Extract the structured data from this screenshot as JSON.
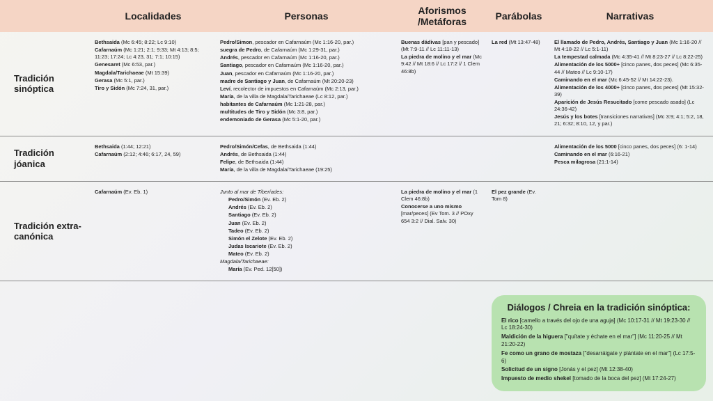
{
  "headers": {
    "loc": "Localidades",
    "per": "Personas",
    "afo": "Aforismos /Metáforas",
    "par": "Parábolas",
    "nar": "Narrativas"
  },
  "rows": [
    {
      "label": "Tradición sinóptica",
      "loc": [
        {
          "b": "Bethsaida",
          "r": " (Mc 6:45; 8:22; Lc 9:10)"
        },
        {
          "b": "Cafarnaúm",
          "r": " (Mc 1:21; 2:1; 9:33; Mt 4:13; 8:5; 11:23; 17:24; Lc 4:23, 31; 7:1; 10:15)"
        },
        {
          "b": "Genesaret",
          "r": " (Mc 6:53, par.)"
        },
        {
          "b": "Magdala/Tarichaeae",
          "r": " (Mt 15:39)"
        },
        {
          "b": "Gerasa",
          "r": " (Mc 5:1, par.)"
        },
        {
          "b": "Tiro y Sidón",
          "r": " (Mc 7:24, 31, par.)"
        }
      ],
      "per": [
        {
          "b": "Pedro/Simon",
          "r": ", pescador en Cafarnaúm (Mc 1:16-20, par.)"
        },
        {
          "b": "suegra de Pedro",
          "r": ", de Cafarnaúm (Mc 1:29-31, par.)"
        },
        {
          "b": "Andrés",
          "r": ", pescador en Cafarnaúm (Mc 1:16-20, par.)"
        },
        {
          "b": "Santiago",
          "r": ", pescador en Cafarnaúm (Mc 1:16-20, par.)"
        },
        {
          "b": "Juan",
          "r": ", pescador en Cafarnaúm (Mc 1:16-20, par.)"
        },
        {
          "b": "madre de Santiago y Juan",
          "r": ", de Cafarnaúm (Mt 20:20-23)"
        },
        {
          "b": "Leví",
          "r": ", recolector de impuestos en Cafarnaúm (Mc 2:13, par.)"
        },
        {
          "b": "María",
          "r": ", de la villa de Magdala/Tarichaeae (Lc 8:12, par.)"
        },
        {
          "b": "habitantes de Cafarnaúm",
          "r": " (Mc 1:21-28, par.)"
        },
        {
          "b": "multitudes de Tiro y Sidón",
          "r": " (Mc 3:8, par.)"
        },
        {
          "b": "endemoniado de Gerasa",
          "r": " (Mc 5:1-20, par.)"
        }
      ],
      "afo": [
        {
          "b": "Buenas dádivas",
          "r": " [pan y pescado] (Mt 7:9-11 // Lc 11:11-13)"
        },
        {
          "b": "La piedra de molino y el mar",
          "r": " (Mc 9:42 // Mt 18:6 // Lc 17:2 // 1 Clem 46:8b)"
        }
      ],
      "par": [
        {
          "b": "La red",
          "r": " (Mt 13:47-48)"
        }
      ],
      "nar": [
        {
          "b": "El llamado de Pedro, Andrés, Santiago y Juan",
          "r": " (Mc 1:16-20 // Mt 4:18-22 // Lc 5:1-11)"
        },
        {
          "b": "La tempestad calmada",
          "r": " (Mc 4:35-41 // Mt 8:23-27 // Lc 8:22-25)"
        },
        {
          "b": "Alimentación de los 5000+",
          "r": " [cinco panes, dos peces] (Mc 6:35-44 // Mateo // Lc 9:10-17)"
        },
        {
          "b": "Caminando en el mar",
          "r": " (Mc 6:45-52 // Mt 14:22-23)."
        },
        {
          "b": "Alimentación de los 4000+",
          "r": " [cinco panes, dos peces] (Mt 15:32-39)"
        },
        {
          "b": "Aparición de Jesús Resucitado",
          "r": " [come pescado asado] (Lc 24:36-42)"
        },
        {
          "b": "Jesús y los botes",
          "r": " [transiciones narrativas] (Mc 3:9; 4:1; 5:2, 18, 21; 6:32; 8:10, 12, y par.)"
        }
      ]
    },
    {
      "label": "Tradición jóanica",
      "loc": [
        {
          "b": "Bethsaida",
          "r": " (1:44; 12:21)"
        },
        {
          "b": "Cafarnaúm",
          "r": " (2:12; 4:46; 6:17, 24, 59)"
        }
      ],
      "per": [
        {
          "b": "Pedro/Simón/Cefas",
          "r": ", de Bethsaida (1:44)"
        },
        {
          "b": "Andrés",
          "r": ", de Bethsaida (1:44)"
        },
        {
          "b": "Felipe",
          "r": ", de Bethsaida (1:44)"
        },
        {
          "b": "María",
          "r": ", de la villa de Magdala/Tarichaeae (19:25)"
        }
      ],
      "afo": [],
      "par": [],
      "nar": [
        {
          "b": "Alimentación de los 5000",
          "r": " [cinco panes, dos peces] (6: 1-14)"
        },
        {
          "b": "Caminando en el mar",
          "r": " (6:16-21)"
        },
        {
          "b": "Pesca milagrosa",
          "r": " (21:1-14)"
        }
      ]
    },
    {
      "label": "Tradición extra-canónica",
      "loc": [
        {
          "b": "Cafarnaúm",
          "r": " (Ev. Eb. 1)"
        }
      ],
      "per_groups": [
        {
          "head": "Junto al mar de Tiberíades:",
          "items": [
            {
              "b": "Pedro/Simón",
              "r": " (Ev. Eb. 2)"
            },
            {
              "b": "Andrés",
              "r": " (Ev. Eb. 2)"
            },
            {
              "b": "Santiago",
              "r": " (Ev. Eb. 2)"
            },
            {
              "b": "Juan",
              "r": " (Ev. Eb. 2)"
            },
            {
              "b": "Tadeo",
              "r": " (Ev. Eb. 2)"
            },
            {
              "b": "Simón el Zelote",
              "r": " (Ev. Eb. 2)"
            },
            {
              "b": "Judas Iscariote",
              "r": " (Ev. Eb. 2)"
            },
            {
              "b": "Mateo",
              "r": " (Ev. Eb. 2)"
            }
          ]
        },
        {
          "head": "Magdala/Tarichaeae:",
          "items": [
            {
              "b": "María",
              "r": " (Ev. Ped. 12[50])"
            }
          ]
        }
      ],
      "afo": [
        {
          "b": "La piedra de molino y el mar",
          "r": " (1 Clem 46:8b)"
        },
        {
          "b": "Conocerse a uno mismo",
          "r": " [mar/peces] (Ev Tom. 3 // POxy 654 3:2 // Dial. Salv. 30)"
        }
      ],
      "par": [
        {
          "b": "El pez grande",
          "r": " (Ev. Tom 8)"
        }
      ],
      "nar": []
    }
  ],
  "callout": {
    "title": "Diálogos / Chreia en la tradición sinóptica:",
    "items": [
      {
        "b": "El rico",
        "r": " [camello a través del ojo de una aguja] (Mc 10:17-31 // Mt 19:23-30 // Lc 18:24-30)"
      },
      {
        "b": "Maldición de la higuera",
        "r": " [\"quítate y échate en el mar\"] (Mc 11:20-25 // Mt 21:20-22)"
      },
      {
        "b": "Fe como un grano de mostaza",
        "r": " [\"desarráigate y plántate en el mar\"] (Lc 17:5-6)"
      },
      {
        "b": "Solicitud de un signo",
        "r": " [Jonás y el pez] (Mt 12:38-40)"
      },
      {
        "b": "Impuesto de medio shekel",
        "r": " [tomado de la boca del pez] (Mt 17:24-27)"
      }
    ]
  }
}
